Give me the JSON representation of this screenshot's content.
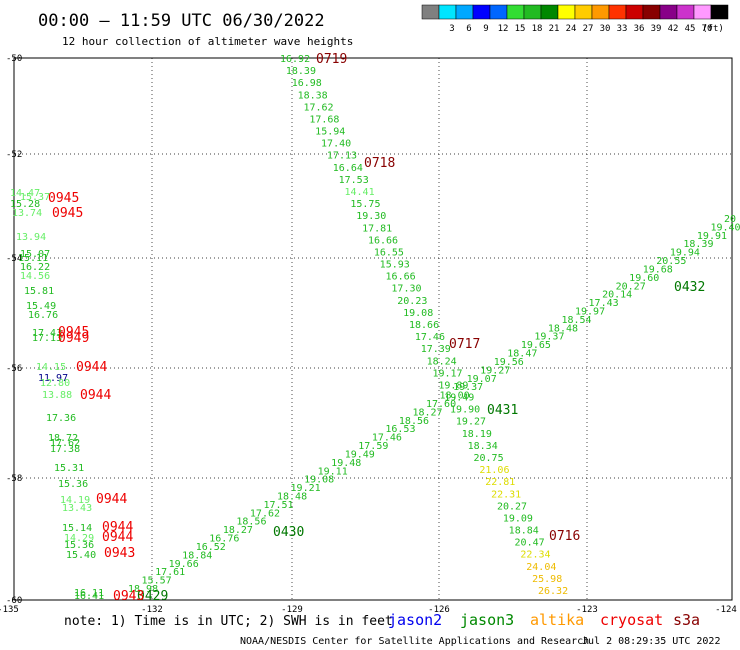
{
  "title": "00:00 – 11:59 UTC 06/30/2022",
  "subtitle": "12 hour collection of altimeter wave heights",
  "legend": {
    "unit": "(ft)",
    "swatches": [
      {
        "color": "#808080",
        "label": ""
      },
      {
        "color": "#00e5ff",
        "label": "3"
      },
      {
        "color": "#00a8ff",
        "label": "6"
      },
      {
        "color": "#0000ff",
        "label": "9"
      },
      {
        "color": "#0066ff",
        "label": "12"
      },
      {
        "color": "#33dd33",
        "label": "15"
      },
      {
        "color": "#22bb22",
        "label": "18"
      },
      {
        "color": "#008800",
        "label": "21"
      },
      {
        "color": "#ffff00",
        "label": "24"
      },
      {
        "color": "#ffcc00",
        "label": "27"
      },
      {
        "color": "#ff9900",
        "label": "30"
      },
      {
        "color": "#ff3300",
        "label": "33"
      },
      {
        "color": "#cc0000",
        "label": "36"
      },
      {
        "color": "#880000",
        "label": "39"
      },
      {
        "color": "#880088",
        "label": "42"
      },
      {
        "color": "#cc33cc",
        "label": "45"
      },
      {
        "color": "#ff99ff",
        "label": "70"
      },
      {
        "color": "#000000",
        "label": ""
      }
    ]
  },
  "map": {
    "lon_range": [
      -135,
      -124
    ],
    "lat_range": [
      -60,
      -50
    ],
    "lon_ticks": [
      "-135",
      "-132",
      "-129",
      "-126",
      "-123",
      "-124"
    ],
    "lat_ticks": [
      "-50",
      "-52",
      "-54",
      "-56",
      "-58",
      "-60"
    ],
    "grid": true
  },
  "tracks": [
    {
      "name": "0719-0716",
      "points": [
        {
          "t": "16.92",
          "c": "#22bb22"
        },
        {
          "t": "18.39",
          "c": "#22bb22"
        },
        {
          "t": "16.98",
          "c": "#22bb22"
        },
        {
          "t": "18.38",
          "c": "#22bb22"
        },
        {
          "t": "17.62",
          "c": "#22bb22"
        },
        {
          "t": "17.68",
          "c": "#22bb22"
        },
        {
          "t": "15.94",
          "c": "#22bb22"
        },
        {
          "t": "17.40",
          "c": "#22bb22"
        },
        {
          "t": "17.13",
          "c": "#22bb22"
        },
        {
          "t": "16.64",
          "c": "#22bb22"
        },
        {
          "t": "17.53",
          "c": "#22bb22"
        },
        {
          "t": "14.41",
          "c": "#66ee66"
        },
        {
          "t": "15.75",
          "c": "#22bb22"
        },
        {
          "t": "19.30",
          "c": "#22bb22"
        },
        {
          "t": "17.81",
          "c": "#22bb22"
        },
        {
          "t": "16.66",
          "c": "#22bb22"
        },
        {
          "t": "16.55",
          "c": "#22bb22"
        },
        {
          "t": "15.93",
          "c": "#22bb22"
        },
        {
          "t": "16.66",
          "c": "#22bb22"
        },
        {
          "t": "17.30",
          "c": "#22bb22"
        },
        {
          "t": "20.23",
          "c": "#22bb22"
        },
        {
          "t": "19.08",
          "c": "#22bb22"
        },
        {
          "t": "18.66",
          "c": "#22bb22"
        },
        {
          "t": "17.46",
          "c": "#22bb22"
        },
        {
          "t": "17.39",
          "c": "#22bb22"
        },
        {
          "t": "18.24",
          "c": "#22bb22"
        },
        {
          "t": "19.17",
          "c": "#22bb22"
        },
        {
          "t": "19.89",
          "c": "#22bb22"
        },
        {
          "t": "19.49",
          "c": "#22bb22"
        },
        {
          "t": "19.90",
          "c": "#22bb22"
        },
        {
          "t": "19.27",
          "c": "#22bb22"
        },
        {
          "t": "18.19",
          "c": "#22bb22"
        },
        {
          "t": "18.34",
          "c": "#22bb22"
        },
        {
          "t": "20.75",
          "c": "#22bb22"
        },
        {
          "t": "21.06",
          "c": "#dddd00"
        },
        {
          "t": "22.81",
          "c": "#dddd00"
        },
        {
          "t": "22.31",
          "c": "#dddd00"
        },
        {
          "t": "20.27",
          "c": "#22bb22"
        },
        {
          "t": "19.09",
          "c": "#22bb22"
        },
        {
          "t": "18.84",
          "c": "#22bb22"
        },
        {
          "t": "20.47",
          "c": "#22bb22"
        },
        {
          "t": "22.34",
          "c": "#dddd00"
        },
        {
          "t": "24.04",
          "c": "#eebb00"
        },
        {
          "t": "25.98",
          "c": "#eebb00"
        },
        {
          "t": "26.32",
          "c": "#eebb00"
        }
      ]
    },
    {
      "name": "0429-0432",
      "points": [
        {
          "t": "18.98",
          "c": "#22bb22"
        },
        {
          "t": "15.57",
          "c": "#22bb22"
        },
        {
          "t": "17.61",
          "c": "#22bb22"
        },
        {
          "t": "19.66",
          "c": "#22bb22"
        },
        {
          "t": "18.84",
          "c": "#22bb22"
        },
        {
          "t": "16.52",
          "c": "#22bb22"
        },
        {
          "t": "16.76",
          "c": "#22bb22"
        },
        {
          "t": "18.27",
          "c": "#22bb22"
        },
        {
          "t": "18.56",
          "c": "#22bb22"
        },
        {
          "t": "17.62",
          "c": "#22bb22"
        },
        {
          "t": "17.51",
          "c": "#22bb22"
        },
        {
          "t": "18.48",
          "c": "#22bb22"
        },
        {
          "t": "19.21",
          "c": "#22bb22"
        },
        {
          "t": "19.08",
          "c": "#22bb22"
        },
        {
          "t": "19.11",
          "c": "#22bb22"
        },
        {
          "t": "19.48",
          "c": "#22bb22"
        },
        {
          "t": "19.49",
          "c": "#22bb22"
        },
        {
          "t": "17.59",
          "c": "#22bb22"
        },
        {
          "t": "17.46",
          "c": "#22bb22"
        },
        {
          "t": "16.53",
          "c": "#22bb22"
        },
        {
          "t": "18.56",
          "c": "#22bb22"
        },
        {
          "t": "18.27",
          "c": "#22bb22"
        },
        {
          "t": "17.60",
          "c": "#22bb22"
        },
        {
          "t": "18.00",
          "c": "#22bb22"
        },
        {
          "t": "19.37",
          "c": "#22bb22"
        },
        {
          "t": "19.07",
          "c": "#22bb22"
        },
        {
          "t": "19.27",
          "c": "#22bb22"
        },
        {
          "t": "19.56",
          "c": "#22bb22"
        },
        {
          "t": "18.47",
          "c": "#22bb22"
        },
        {
          "t": "19.65",
          "c": "#22bb22"
        },
        {
          "t": "19.37",
          "c": "#22bb22"
        },
        {
          "t": "18.48",
          "c": "#22bb22"
        },
        {
          "t": "18.54",
          "c": "#22bb22"
        },
        {
          "t": "19.97",
          "c": "#22bb22"
        },
        {
          "t": "17.43",
          "c": "#22bb22"
        },
        {
          "t": "20.14",
          "c": "#22bb22"
        },
        {
          "t": "20.27",
          "c": "#22bb22"
        },
        {
          "t": "19.60",
          "c": "#22bb22"
        },
        {
          "t": "19.68",
          "c": "#22bb22"
        },
        {
          "t": "20.55",
          "c": "#22bb22"
        },
        {
          "t": "19.94",
          "c": "#22bb22"
        },
        {
          "t": "18.39",
          "c": "#22bb22"
        },
        {
          "t": "19.91",
          "c": "#22bb22"
        },
        {
          "t": "19.40",
          "c": "#22bb22"
        },
        {
          "t": "20",
          "c": "#22bb22"
        }
      ]
    }
  ],
  "left_values": [
    {
      "t": "14.47",
      "c": "#66ee66"
    },
    {
      "t": "15.37",
      "c": "#66ee66"
    },
    {
      "t": "15.28",
      "c": "#22bb22"
    },
    {
      "t": "13.74",
      "c": "#66ee66"
    },
    {
      "t": "13.94",
      "c": "#66ee66"
    },
    {
      "t": "15.07",
      "c": "#22bb22"
    },
    {
      "t": "15.11",
      "c": "#22bb22"
    },
    {
      "t": "16.22",
      "c": "#22bb22"
    },
    {
      "t": "14.56",
      "c": "#66ee66"
    },
    {
      "t": "15.81",
      "c": "#22bb22"
    },
    {
      "t": "15.49",
      "c": "#22bb22"
    },
    {
      "t": "16.76",
      "c": "#22bb22"
    },
    {
      "t": "17.43",
      "c": "#22bb22"
    },
    {
      "t": "17.13",
      "c": "#22bb22"
    },
    {
      "t": "14.15",
      "c": "#66ee66"
    },
    {
      "t": "11.97",
      "c": "#000088"
    },
    {
      "t": "12.80",
      "c": "#66ee66"
    },
    {
      "t": "13.88",
      "c": "#66ee66"
    },
    {
      "t": "17.36",
      "c": "#22bb22"
    },
    {
      "t": "18.72",
      "c": "#22bb22"
    },
    {
      "t": "17.62",
      "c": "#22bb22"
    },
    {
      "t": "17.38",
      "c": "#22bb22"
    },
    {
      "t": "15.31",
      "c": "#22bb22"
    },
    {
      "t": "15.36",
      "c": "#22bb22"
    },
    {
      "t": "14.19",
      "c": "#66ee66"
    },
    {
      "t": "13.43",
      "c": "#66ee66"
    },
    {
      "t": "15.14",
      "c": "#22bb22"
    },
    {
      "t": "14.29",
      "c": "#66ee66"
    },
    {
      "t": "15.36",
      "c": "#22bb22"
    },
    {
      "t": "15.40",
      "c": "#22bb22"
    },
    {
      "t": "16.11",
      "c": "#22bb22"
    },
    {
      "t": "16.41",
      "c": "#22bb22"
    }
  ],
  "time_labels": [
    {
      "t": "0719",
      "c": "#880000"
    },
    {
      "t": "0718",
      "c": "#880000"
    },
    {
      "t": "0717",
      "c": "#880000"
    },
    {
      "t": "0716",
      "c": "#880000"
    },
    {
      "t": "0432",
      "c": "#007700"
    },
    {
      "t": "0431",
      "c": "#007700"
    },
    {
      "t": "0430",
      "c": "#007700"
    },
    {
      "t": "0429",
      "c": "#007700"
    },
    {
      "t": "0945",
      "c": "#ee0000"
    },
    {
      "t": "0945",
      "c": "#ee0000"
    },
    {
      "t": "0945",
      "c": "#ee0000"
    },
    {
      "t": "0949",
      "c": "#ee0000"
    },
    {
      "t": "0944",
      "c": "#ee0000"
    },
    {
      "t": "0944",
      "c": "#ee0000"
    },
    {
      "t": "0944",
      "c": "#ee0000"
    },
    {
      "t": "0944",
      "c": "#ee0000"
    },
    {
      "t": "0944",
      "c": "#ee0000"
    },
    {
      "t": "0943",
      "c": "#ee0000"
    },
    {
      "t": "0943",
      "c": "#ee0000"
    }
  ],
  "footer": {
    "note": "note: 1) Time is in UTC; 2) SWH is in feet",
    "satellites": [
      {
        "name": "jason2",
        "color": "#0000ee"
      },
      {
        "name": "jason3",
        "color": "#008800"
      },
      {
        "name": "altika",
        "color": "#ff9900"
      },
      {
        "name": "cryosat",
        "color": "#ee0000"
      },
      {
        "name": "s3a",
        "color": "#880000"
      }
    ],
    "credit": "NOAA/NESDIS Center for Satellite Applications and Research",
    "timestamp": "Jul  2 08:29:35 UTC 2022"
  }
}
